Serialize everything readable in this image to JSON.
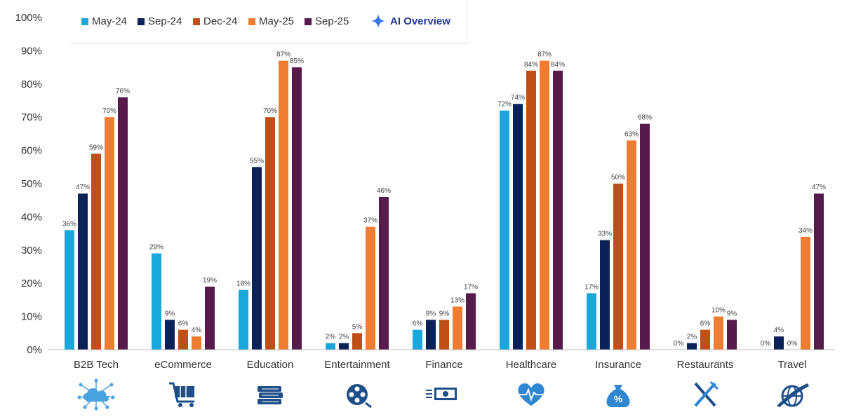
{
  "legend": {
    "items": [
      {
        "label": "May-24",
        "color": "#1aa7dc"
      },
      {
        "label": "Sep-24",
        "color": "#0b2157"
      },
      {
        "label": "Dec-24",
        "color": "#bf4f16"
      },
      {
        "label": "May-25",
        "color": "#ee7d31"
      },
      {
        "label": "Sep-25",
        "color": "#561a4b"
      }
    ],
    "ai_overview_label": "AI Overview",
    "ai_overview_color": "#1f3a93"
  },
  "chart_data": {
    "type": "bar",
    "categories": [
      "B2B Tech",
      "eCommerce",
      "Education",
      "Entertainment",
      "Finance",
      "Healthcare",
      "Insurance",
      "Restaurants",
      "Travel"
    ],
    "series": [
      {
        "name": "May-24",
        "values": [
          36,
          29,
          18,
          2,
          6,
          72,
          17,
          0,
          0
        ],
        "labels": [
          "36%",
          "29%",
          "18%",
          "2%",
          "6%",
          "72%",
          "17%",
          "0%",
          "0%"
        ]
      },
      {
        "name": "Sep-24",
        "values": [
          47,
          9,
          55,
          2,
          9,
          74,
          33,
          2,
          4
        ],
        "labels": [
          "47%",
          "9%",
          "55%",
          "2%",
          "9%",
          "74%",
          "33%",
          "2%",
          "4%"
        ]
      },
      {
        "name": "Dec-24",
        "values": [
          59,
          6,
          70,
          5,
          9,
          84,
          50,
          6,
          0
        ],
        "labels": [
          "59%",
          "6%",
          "70%",
          "5%",
          "9%",
          "84%",
          "50%",
          "6%",
          "0%"
        ]
      },
      {
        "name": "May-25",
        "values": [
          70,
          4,
          87,
          37,
          13,
          87,
          63,
          10,
          34
        ],
        "labels": [
          "70%",
          "4%",
          "87%",
          "37%",
          "13%",
          "87%",
          "63%",
          "10%",
          "34%"
        ]
      },
      {
        "name": "Sep-25",
        "values": [
          76,
          19,
          85,
          46,
          17,
          84,
          68,
          9,
          47
        ],
        "labels": [
          "76%",
          "19%",
          "85%",
          "46%",
          "17%",
          "84%",
          "68%",
          "9%",
          "47%"
        ]
      }
    ],
    "yticks": [
      "0%",
      "10%",
      "20%",
      "30%",
      "40%",
      "50%",
      "60%",
      "70%",
      "80%",
      "90%",
      "100%"
    ],
    "ylim": [
      0,
      100
    ],
    "grid": false,
    "legend_position": "top",
    "icons": [
      "cloud-network-icon",
      "shopping-cart-icon",
      "books-icon",
      "film-reel-icon",
      "money-bill-icon",
      "heartbeat-icon",
      "money-bag-percent-icon",
      "fork-knife-icon",
      "globe-plane-icon"
    ],
    "icon_color": "#1f4e89"
  }
}
